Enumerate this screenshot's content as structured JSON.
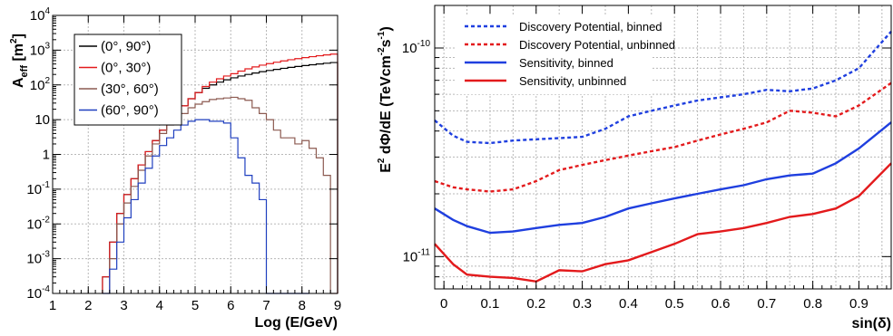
{
  "chart_data": [
    {
      "type": "line",
      "xlabel": "Log (E/GeV)",
      "ylabel_main": "A",
      "ylabel_sub": "eff",
      "ylabel_unit_open": "[m",
      "ylabel_unit_sup": "2",
      "ylabel_unit_close": "]",
      "xlim": [
        1,
        9
      ],
      "ylim": [
        0.0001,
        10000
      ],
      "yscale": "log",
      "grid": true,
      "legend_position": "top-left",
      "x_ticks": [
        "1",
        "2",
        "3",
        "4",
        "5",
        "6",
        "7",
        "8",
        "9"
      ],
      "y_ticks": [
        {
          "value": 0.0001,
          "base": "10",
          "exp": "-4"
        },
        {
          "value": 0.001,
          "base": "10",
          "exp": "-3"
        },
        {
          "value": 0.01,
          "base": "10",
          "exp": "-2"
        },
        {
          "value": 0.1,
          "base": "10",
          "exp": "-1"
        },
        {
          "value": 1,
          "base": "1",
          "exp": ""
        },
        {
          "value": 10,
          "base": "10",
          "exp": ""
        },
        {
          "value": 100,
          "base": "10",
          "exp": "2"
        },
        {
          "value": 1000,
          "base": "10",
          "exp": "3"
        },
        {
          "value": 10000,
          "base": "10",
          "exp": "4"
        }
      ],
      "bin_width": 0.2,
      "series": [
        {
          "name": "(0°, 90°)",
          "color": "#000000",
          "x": [
            2.4,
            2.6,
            2.8,
            3.0,
            3.2,
            3.4,
            3.6,
            3.8,
            4.0,
            4.2,
            4.4,
            4.6,
            4.8,
            5.0,
            5.2,
            5.4,
            5.6,
            5.8,
            6.0,
            6.2,
            6.4,
            6.6,
            6.8,
            7.0,
            7.2,
            7.4,
            7.6,
            7.8,
            8.0,
            8.2,
            8.4,
            8.6,
            8.8
          ],
          "values": [
            0.0003,
            0.003,
            0.02,
            0.07,
            0.2,
            0.5,
            1.2,
            2.5,
            5,
            8,
            15,
            25,
            40,
            60,
            80,
            100,
            120,
            140,
            160,
            180,
            200,
            220,
            240,
            260,
            280,
            300,
            320,
            340,
            360,
            380,
            400,
            420,
            440
          ]
        },
        {
          "name": "(0°, 30°)",
          "color": "#e31a1c",
          "x": [
            2.4,
            2.6,
            2.8,
            3.0,
            3.2,
            3.4,
            3.6,
            3.8,
            4.0,
            4.2,
            4.4,
            4.6,
            4.8,
            5.0,
            5.2,
            5.4,
            5.6,
            5.8,
            6.0,
            6.2,
            6.4,
            6.6,
            6.8,
            7.0,
            7.2,
            7.4,
            7.6,
            7.8,
            8.0,
            8.2,
            8.4,
            8.6,
            8.8
          ],
          "values": [
            0.0003,
            0.003,
            0.02,
            0.07,
            0.2,
            0.5,
            1.2,
            2.5,
            5,
            8,
            15,
            25,
            40,
            60,
            90,
            120,
            150,
            180,
            210,
            250,
            290,
            330,
            370,
            410,
            450,
            490,
            530,
            570,
            610,
            650,
            690,
            730,
            770
          ]
        },
        {
          "name": "(30°, 60°)",
          "color": "#8c5a50",
          "x": [
            2.6,
            2.8,
            3.0,
            3.2,
            3.4,
            3.6,
            3.8,
            4.0,
            4.2,
            4.4,
            4.6,
            4.8,
            5.0,
            5.2,
            5.4,
            5.6,
            5.8,
            6.0,
            6.2,
            6.4,
            6.6,
            6.8,
            7.0,
            7.2,
            7.4,
            7.6,
            7.8,
            8.0,
            8.2,
            8.4,
            8.6,
            8.8
          ],
          "values": [
            0.001,
            0.01,
            0.04,
            0.12,
            0.35,
            0.9,
            2,
            4,
            7,
            10,
            15,
            22,
            28,
            33,
            38,
            40,
            42,
            44,
            40,
            36,
            22,
            15,
            10,
            5,
            3,
            3,
            2,
            2.5,
            1.5,
            0.8,
            0.25,
            0.0001
          ]
        },
        {
          "name": "(60°, 90°)",
          "color": "#1f3fbf",
          "x": [
            2.4,
            2.6,
            2.8,
            3.0,
            3.2,
            3.4,
            3.6,
            3.8,
            4.0,
            4.2,
            4.4,
            4.6,
            4.8,
            5.0,
            5.2,
            5.4,
            5.6,
            5.8,
            6.0,
            6.2,
            6.4,
            6.6,
            6.8,
            7.0,
            7.2,
            7.4,
            7.6,
            7.8,
            8.0
          ],
          "values": [
            0.0001,
            0.0005,
            0.003,
            0.015,
            0.05,
            0.15,
            0.4,
            0.9,
            1.8,
            3,
            5,
            7,
            9,
            10,
            10,
            9,
            9,
            8,
            3,
            0.8,
            0.25,
            0.15,
            0.05,
            0.0001,
            0.0001,
            0.0001,
            0.0001,
            4e-05,
            0.0001
          ]
        }
      ]
    },
    {
      "type": "line",
      "xlabel": "sin(δ)",
      "ylabel_pre": "E",
      "ylabel_pre_sup": "2",
      "ylabel_mid": " dΦ/dE (TeVcm",
      "ylabel_mid_sup": "-2",
      "ylabel_end": "s",
      "ylabel_end_sup": "-1",
      "ylabel_close": ")",
      "xlim": [
        -0.02,
        0.97
      ],
      "ylim": [
        7e-12,
        1.6e-10
      ],
      "yscale": "log",
      "grid": true,
      "legend_position": "top-left",
      "x_ticks": [
        "0",
        "0.1",
        "0.2",
        "0.3",
        "0.4",
        "0.5",
        "0.6",
        "0.7",
        "0.8",
        "0.9"
      ],
      "y_ticks": [
        {
          "value": 1e-11,
          "base": "10",
          "exp": "-11"
        },
        {
          "value": 1e-10,
          "base": "10",
          "exp": "-10"
        }
      ],
      "x": [
        -0.02,
        0.02,
        0.05,
        0.1,
        0.15,
        0.2,
        0.25,
        0.3,
        0.35,
        0.4,
        0.45,
        0.5,
        0.55,
        0.6,
        0.65,
        0.7,
        0.75,
        0.8,
        0.85,
        0.9,
        0.97
      ],
      "series": [
        {
          "name": "Discovery Potential, binned",
          "color": "#1f3fdf",
          "dash": "dotted",
          "values": [
            4.5e-11,
            3.8e-11,
            3.55e-11,
            3.5e-11,
            3.6e-11,
            3.65e-11,
            3.7e-11,
            3.75e-11,
            4.1e-11,
            4.7e-11,
            5e-11,
            5.3e-11,
            5.6e-11,
            5.8e-11,
            6e-11,
            6.3e-11,
            6.2e-11,
            6.4e-11,
            7e-11,
            8e-11,
            1.2e-10
          ]
        },
        {
          "name": "Discovery Potential, unbinned",
          "color": "#e31a1c",
          "dash": "dotted",
          "values": [
            2.3e-11,
            2.15e-11,
            2.1e-11,
            2.05e-11,
            2.1e-11,
            2.3e-11,
            2.6e-11,
            2.75e-11,
            2.9e-11,
            3.05e-11,
            3.2e-11,
            3.35e-11,
            3.6e-11,
            3.85e-11,
            4.1e-11,
            4.4e-11,
            5e-11,
            4.9e-11,
            4.7e-11,
            5.3e-11,
            6.8e-11
          ]
        },
        {
          "name": "Sensitivity, binned",
          "color": "#1f3fdf",
          "dash": "solid",
          "values": [
            1.7e-11,
            1.5e-11,
            1.4e-11,
            1.3e-11,
            1.32e-11,
            1.37e-11,
            1.42e-11,
            1.45e-11,
            1.55e-11,
            1.7e-11,
            1.8e-11,
            1.9e-11,
            2e-11,
            2.1e-11,
            2.2e-11,
            2.35e-11,
            2.45e-11,
            2.5e-11,
            2.8e-11,
            3.3e-11,
            4.4e-11
          ]
        },
        {
          "name": "Sensitivity, unbinned",
          "color": "#e31a1c",
          "dash": "solid",
          "values": [
            1.15e-11,
            9.2e-12,
            8.2e-12,
            8e-12,
            7.9e-12,
            7.6e-12,
            8.6e-12,
            8.5e-12,
            9.2e-12,
            9.6e-12,
            1.05e-11,
            1.15e-11,
            1.28e-11,
            1.32e-11,
            1.37e-11,
            1.45e-11,
            1.55e-11,
            1.6e-11,
            1.7e-11,
            1.95e-11,
            2.8e-11
          ]
        }
      ]
    }
  ]
}
